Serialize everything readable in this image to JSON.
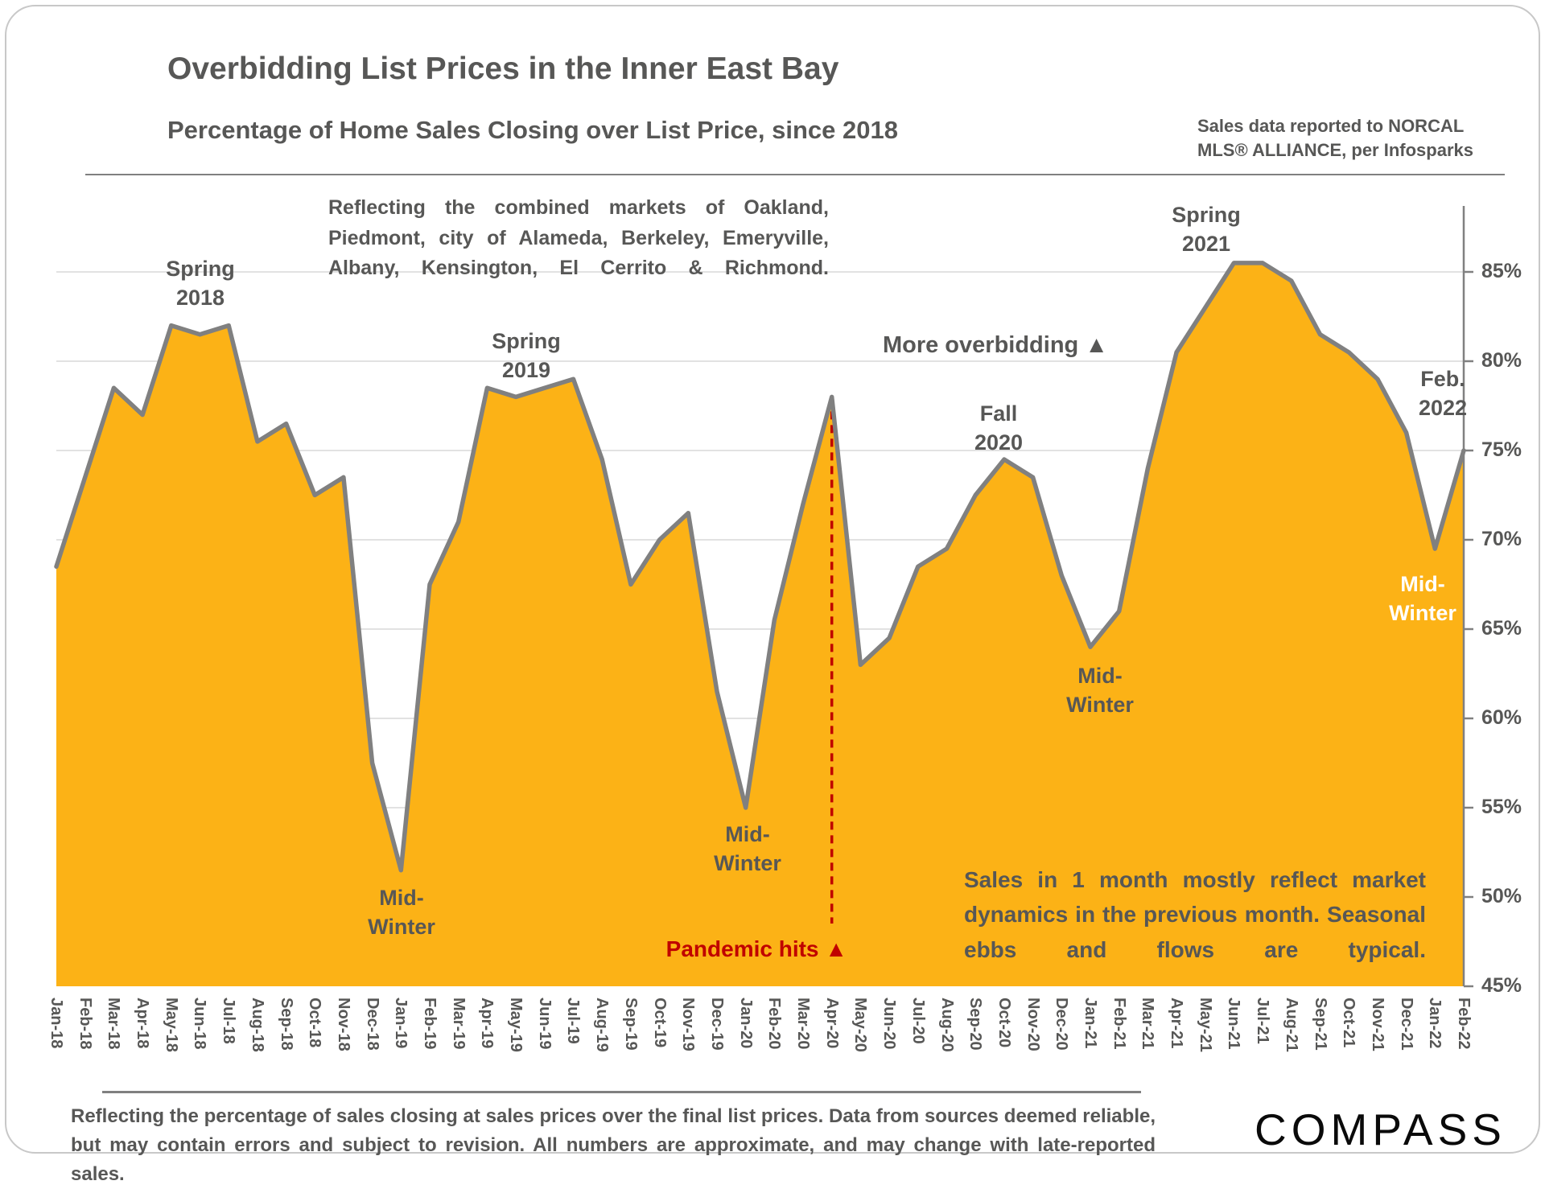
{
  "header": {
    "title": "Overbidding List Prices in the Inner East Bay",
    "subtitle": "Percentage of Home Sales Closing over List Price, since 2018",
    "source_note": "Sales data reported to NORCAL\nMLS® ALLIANCE, per Infosparks"
  },
  "chart_data": {
    "type": "area",
    "title": "Percentage of Home Sales Closing over List Price, since 2018",
    "categories": [
      "Jan-18",
      "Feb-18",
      "Mar-18",
      "Apr-18",
      "May-18",
      "Jun-18",
      "Jul-18",
      "Aug-18",
      "Sep-18",
      "Oct-18",
      "Nov-18",
      "Dec-18",
      "Jan-19",
      "Feb-19",
      "Mar-19",
      "Apr-19",
      "May-19",
      "Jun-19",
      "Jul-19",
      "Aug-19",
      "Sep-19",
      "Oct-19",
      "Nov-19",
      "Dec-19",
      "Jan-20",
      "Feb-20",
      "Mar-20",
      "Apr-20",
      "May-20",
      "Jun-20",
      "Jul-20",
      "Aug-20",
      "Sep-20",
      "Oct-20",
      "Nov-20",
      "Dec-20",
      "Jan-21",
      "Feb-21",
      "Mar-21",
      "Apr-21",
      "May-21",
      "Jun-21",
      "Jul-21",
      "Aug-21",
      "Sep-21",
      "Oct-21",
      "Nov-21",
      "Dec-21",
      "Jan-22",
      "Feb-22"
    ],
    "values": [
      68.5,
      73.5,
      78.5,
      77,
      82,
      81.5,
      82,
      75.5,
      76.5,
      72.5,
      73.5,
      57.5,
      51.5,
      67.5,
      71,
      78.5,
      78,
      78.5,
      79,
      74.5,
      67.5,
      70,
      71.5,
      61.5,
      55,
      65.5,
      72,
      78,
      63,
      64.5,
      68.5,
      69.5,
      72.5,
      74.5,
      73.5,
      68,
      64,
      66,
      74,
      80.5,
      83,
      85.5,
      85.5,
      84.5,
      81.5,
      80.5,
      79,
      76,
      69.5,
      75
    ],
    "ylim": [
      45,
      87.5
    ],
    "yticks": [
      85,
      80,
      75,
      70,
      65,
      60,
      55,
      50,
      45
    ],
    "ytick_suffix": "%",
    "grid": true,
    "legend": "none",
    "fill_color": "#FCB216",
    "line_color": "#808080",
    "grid_color": "#D9D9D9",
    "annotation_line": {
      "x_category": "Apr-20",
      "color": "#C00000"
    }
  },
  "annotations": {
    "markets_note": "Reflecting the combined markets of Oakland, Piedmont, city of Alameda, Berkeley, Emeryville, Albany, Kensington, El Cerrito & Richmond.",
    "spring_2018": "Spring\n2018",
    "spring_2019": "Spring\n2019",
    "spring_2021": "Spring\n2021",
    "fall_2020": "Fall\n2020",
    "feb_2022": "Feb.\n2022",
    "mid_winter_2019": "Mid-\nWinter",
    "mid_winter_2020": "Mid-\nWinter",
    "mid_winter_2021": "Mid-\nWinter",
    "mid_winter_2022": "Mid-\nWinter",
    "more_overbidding": "More overbidding ▲",
    "pandemic_hits": "Pandemic hits ▲",
    "sales_note": "Sales in 1 month mostly reflect market dynamics in the previous month. Seasonal ebbs and flows are typical."
  },
  "footer": {
    "disclaimer": "Reflecting the percentage of sales closing at sales prices over the final list prices. Data from sources deemed reliable, but may contain errors and subject to revision. All numbers are approximate, and may change with late-reported sales.",
    "logo": "COMPASS"
  }
}
